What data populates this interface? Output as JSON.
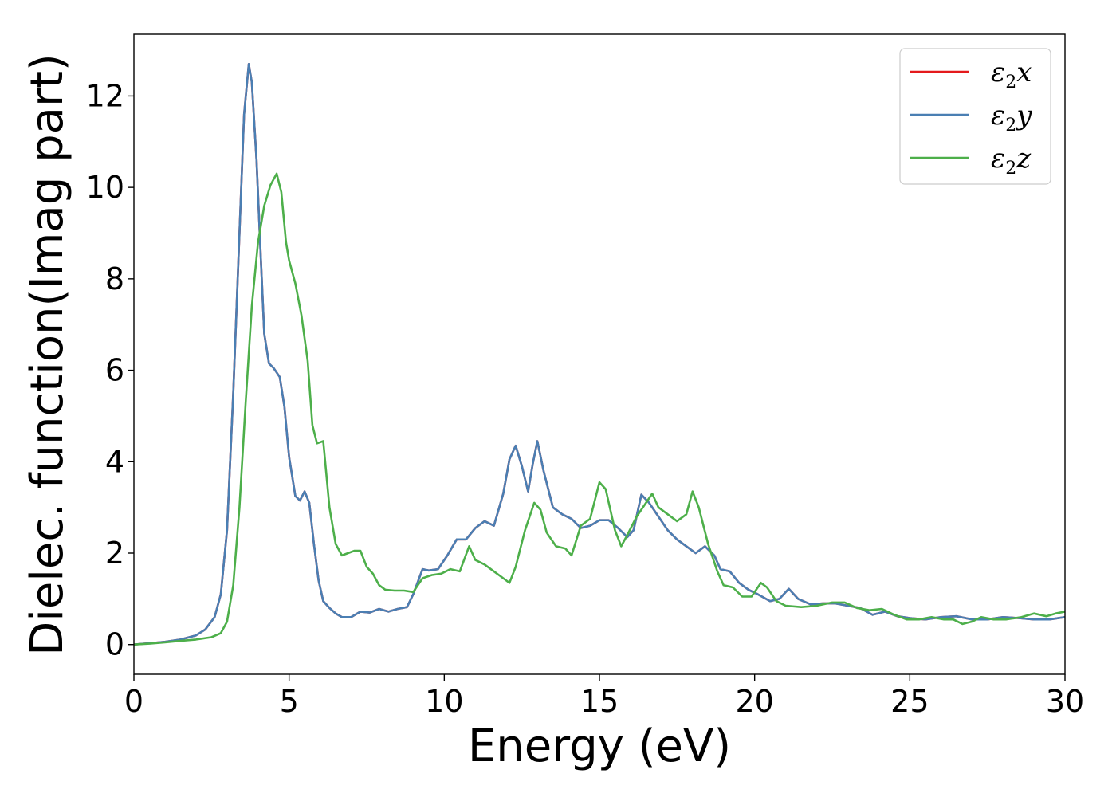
{
  "chart_data": {
    "type": "line",
    "xlabel": "Energy (eV)",
    "ylabel": "Dielec. function(Imag part)",
    "xlim": [
      0,
      30
    ],
    "ylim": [
      -0.65,
      13.35
    ],
    "xticks": [
      0,
      5,
      10,
      15,
      20,
      25,
      30
    ],
    "yticks": [
      0,
      2,
      4,
      6,
      8,
      10,
      12
    ],
    "grid": false,
    "legend_position": "top-right",
    "series": [
      {
        "name": "ε2x",
        "legend_base": "ε",
        "legend_sub": "2",
        "legend_tail": "x",
        "color": "#e41a1c",
        "points": [
          [
            0,
            0
          ],
          [
            0.5,
            0.03
          ],
          [
            1,
            0.06
          ],
          [
            1.5,
            0.11
          ],
          [
            2,
            0.2
          ],
          [
            2.3,
            0.33
          ],
          [
            2.6,
            0.6
          ],
          [
            2.8,
            1.1
          ],
          [
            3.0,
            2.5
          ],
          [
            3.2,
            5.5
          ],
          [
            3.4,
            9.0
          ],
          [
            3.55,
            11.6
          ],
          [
            3.7,
            12.7
          ],
          [
            3.8,
            12.3
          ],
          [
            3.95,
            10.6
          ],
          [
            4.1,
            8.3
          ],
          [
            4.2,
            6.8
          ],
          [
            4.35,
            6.15
          ],
          [
            4.5,
            6.05
          ],
          [
            4.7,
            5.85
          ],
          [
            4.85,
            5.2
          ],
          [
            5.0,
            4.1
          ],
          [
            5.2,
            3.25
          ],
          [
            5.35,
            3.15
          ],
          [
            5.5,
            3.35
          ],
          [
            5.65,
            3.1
          ],
          [
            5.8,
            2.2
          ],
          [
            5.95,
            1.4
          ],
          [
            6.1,
            0.95
          ],
          [
            6.3,
            0.8
          ],
          [
            6.5,
            0.68
          ],
          [
            6.7,
            0.6
          ],
          [
            7.0,
            0.6
          ],
          [
            7.3,
            0.72
          ],
          [
            7.6,
            0.7
          ],
          [
            7.9,
            0.78
          ],
          [
            8.2,
            0.72
          ],
          [
            8.5,
            0.78
          ],
          [
            8.8,
            0.82
          ],
          [
            9.0,
            1.1
          ],
          [
            9.3,
            1.65
          ],
          [
            9.5,
            1.62
          ],
          [
            9.8,
            1.65
          ],
          [
            10.1,
            1.95
          ],
          [
            10.4,
            2.3
          ],
          [
            10.7,
            2.3
          ],
          [
            11.0,
            2.55
          ],
          [
            11.3,
            2.7
          ],
          [
            11.6,
            2.6
          ],
          [
            11.9,
            3.3
          ],
          [
            12.1,
            4.05
          ],
          [
            12.3,
            4.35
          ],
          [
            12.5,
            3.9
          ],
          [
            12.7,
            3.35
          ],
          [
            12.85,
            3.95
          ],
          [
            13.0,
            4.45
          ],
          [
            13.2,
            3.8
          ],
          [
            13.5,
            3.0
          ],
          [
            13.8,
            2.85
          ],
          [
            14.1,
            2.75
          ],
          [
            14.4,
            2.55
          ],
          [
            14.7,
            2.6
          ],
          [
            15.0,
            2.72
          ],
          [
            15.3,
            2.72
          ],
          [
            15.6,
            2.55
          ],
          [
            15.9,
            2.35
          ],
          [
            16.1,
            2.5
          ],
          [
            16.35,
            3.28
          ],
          [
            16.6,
            3.1
          ],
          [
            16.9,
            2.8
          ],
          [
            17.2,
            2.5
          ],
          [
            17.5,
            2.3
          ],
          [
            17.8,
            2.15
          ],
          [
            18.1,
            2.0
          ],
          [
            18.4,
            2.15
          ],
          [
            18.7,
            1.95
          ],
          [
            18.9,
            1.65
          ],
          [
            19.2,
            1.6
          ],
          [
            19.5,
            1.35
          ],
          [
            19.8,
            1.2
          ],
          [
            20.1,
            1.1
          ],
          [
            20.5,
            0.95
          ],
          [
            20.8,
            1.0
          ],
          [
            21.1,
            1.22
          ],
          [
            21.4,
            1.0
          ],
          [
            21.8,
            0.88
          ],
          [
            22.2,
            0.9
          ],
          [
            22.6,
            0.9
          ],
          [
            23.0,
            0.85
          ],
          [
            23.4,
            0.8
          ],
          [
            23.8,
            0.65
          ],
          [
            24.2,
            0.72
          ],
          [
            24.6,
            0.62
          ],
          [
            25.0,
            0.58
          ],
          [
            25.5,
            0.55
          ],
          [
            26.0,
            0.6
          ],
          [
            26.5,
            0.62
          ],
          [
            27.0,
            0.55
          ],
          [
            27.5,
            0.55
          ],
          [
            28.0,
            0.6
          ],
          [
            28.5,
            0.58
          ],
          [
            29.0,
            0.55
          ],
          [
            29.5,
            0.55
          ],
          [
            30.0,
            0.6
          ]
        ]
      },
      {
        "name": "ε2y",
        "legend_base": "ε",
        "legend_sub": "2",
        "legend_tail": "y",
        "color": "#4a7fb3",
        "points": [
          [
            0,
            0
          ],
          [
            0.5,
            0.03
          ],
          [
            1,
            0.06
          ],
          [
            1.5,
            0.11
          ],
          [
            2,
            0.2
          ],
          [
            2.3,
            0.33
          ],
          [
            2.6,
            0.6
          ],
          [
            2.8,
            1.1
          ],
          [
            3.0,
            2.5
          ],
          [
            3.2,
            5.5
          ],
          [
            3.4,
            9.0
          ],
          [
            3.55,
            11.6
          ],
          [
            3.7,
            12.7
          ],
          [
            3.8,
            12.3
          ],
          [
            3.95,
            10.6
          ],
          [
            4.1,
            8.3
          ],
          [
            4.2,
            6.8
          ],
          [
            4.35,
            6.15
          ],
          [
            4.5,
            6.05
          ],
          [
            4.7,
            5.85
          ],
          [
            4.85,
            5.2
          ],
          [
            5.0,
            4.1
          ],
          [
            5.2,
            3.25
          ],
          [
            5.35,
            3.15
          ],
          [
            5.5,
            3.35
          ],
          [
            5.65,
            3.1
          ],
          [
            5.8,
            2.2
          ],
          [
            5.95,
            1.4
          ],
          [
            6.1,
            0.95
          ],
          [
            6.3,
            0.8
          ],
          [
            6.5,
            0.68
          ],
          [
            6.7,
            0.6
          ],
          [
            7.0,
            0.6
          ],
          [
            7.3,
            0.72
          ],
          [
            7.6,
            0.7
          ],
          [
            7.9,
            0.78
          ],
          [
            8.2,
            0.72
          ],
          [
            8.5,
            0.78
          ],
          [
            8.8,
            0.82
          ],
          [
            9.0,
            1.1
          ],
          [
            9.3,
            1.65
          ],
          [
            9.5,
            1.62
          ],
          [
            9.8,
            1.65
          ],
          [
            10.1,
            1.95
          ],
          [
            10.4,
            2.3
          ],
          [
            10.7,
            2.3
          ],
          [
            11.0,
            2.55
          ],
          [
            11.3,
            2.7
          ],
          [
            11.6,
            2.6
          ],
          [
            11.9,
            3.3
          ],
          [
            12.1,
            4.05
          ],
          [
            12.3,
            4.35
          ],
          [
            12.5,
            3.9
          ],
          [
            12.7,
            3.35
          ],
          [
            12.85,
            3.95
          ],
          [
            13.0,
            4.45
          ],
          [
            13.2,
            3.8
          ],
          [
            13.5,
            3.0
          ],
          [
            13.8,
            2.85
          ],
          [
            14.1,
            2.75
          ],
          [
            14.4,
            2.55
          ],
          [
            14.7,
            2.6
          ],
          [
            15.0,
            2.72
          ],
          [
            15.3,
            2.72
          ],
          [
            15.6,
            2.55
          ],
          [
            15.9,
            2.35
          ],
          [
            16.1,
            2.5
          ],
          [
            16.35,
            3.28
          ],
          [
            16.6,
            3.1
          ],
          [
            16.9,
            2.8
          ],
          [
            17.2,
            2.5
          ],
          [
            17.5,
            2.3
          ],
          [
            17.8,
            2.15
          ],
          [
            18.1,
            2.0
          ],
          [
            18.4,
            2.15
          ],
          [
            18.7,
            1.95
          ],
          [
            18.9,
            1.65
          ],
          [
            19.2,
            1.6
          ],
          [
            19.5,
            1.35
          ],
          [
            19.8,
            1.2
          ],
          [
            20.1,
            1.1
          ],
          [
            20.5,
            0.95
          ],
          [
            20.8,
            1.0
          ],
          [
            21.1,
            1.22
          ],
          [
            21.4,
            1.0
          ],
          [
            21.8,
            0.88
          ],
          [
            22.2,
            0.9
          ],
          [
            22.6,
            0.9
          ],
          [
            23.0,
            0.85
          ],
          [
            23.4,
            0.8
          ],
          [
            23.8,
            0.65
          ],
          [
            24.2,
            0.72
          ],
          [
            24.6,
            0.62
          ],
          [
            25.0,
            0.58
          ],
          [
            25.5,
            0.55
          ],
          [
            26.0,
            0.6
          ],
          [
            26.5,
            0.62
          ],
          [
            27.0,
            0.55
          ],
          [
            27.5,
            0.55
          ],
          [
            28.0,
            0.6
          ],
          [
            28.5,
            0.58
          ],
          [
            29.0,
            0.55
          ],
          [
            29.5,
            0.55
          ],
          [
            30.0,
            0.6
          ]
        ]
      },
      {
        "name": "ε2z",
        "legend_base": "ε",
        "legend_sub": "2",
        "legend_tail": "z",
        "color": "#4daf4a",
        "points": [
          [
            0,
            0
          ],
          [
            0.5,
            0.02
          ],
          [
            1,
            0.05
          ],
          [
            1.5,
            0.08
          ],
          [
            2,
            0.11
          ],
          [
            2.5,
            0.16
          ],
          [
            2.8,
            0.25
          ],
          [
            3.0,
            0.5
          ],
          [
            3.2,
            1.3
          ],
          [
            3.4,
            3.0
          ],
          [
            3.6,
            5.3
          ],
          [
            3.8,
            7.4
          ],
          [
            4.0,
            8.8
          ],
          [
            4.2,
            9.6
          ],
          [
            4.4,
            10.05
          ],
          [
            4.6,
            10.3
          ],
          [
            4.75,
            9.9
          ],
          [
            4.9,
            8.8
          ],
          [
            5.0,
            8.4
          ],
          [
            5.2,
            7.9
          ],
          [
            5.4,
            7.2
          ],
          [
            5.6,
            6.2
          ],
          [
            5.75,
            4.8
          ],
          [
            5.9,
            4.4
          ],
          [
            6.1,
            4.45
          ],
          [
            6.3,
            3.0
          ],
          [
            6.5,
            2.2
          ],
          [
            6.7,
            1.95
          ],
          [
            6.9,
            2.0
          ],
          [
            7.1,
            2.05
          ],
          [
            7.3,
            2.05
          ],
          [
            7.5,
            1.7
          ],
          [
            7.7,
            1.55
          ],
          [
            7.9,
            1.3
          ],
          [
            8.1,
            1.2
          ],
          [
            8.4,
            1.18
          ],
          [
            8.7,
            1.18
          ],
          [
            9.0,
            1.15
          ],
          [
            9.3,
            1.45
          ],
          [
            9.6,
            1.52
          ],
          [
            9.9,
            1.55
          ],
          [
            10.2,
            1.65
          ],
          [
            10.5,
            1.6
          ],
          [
            10.8,
            2.15
          ],
          [
            11.0,
            1.85
          ],
          [
            11.3,
            1.75
          ],
          [
            11.6,
            1.6
          ],
          [
            11.9,
            1.45
          ],
          [
            12.1,
            1.35
          ],
          [
            12.3,
            1.7
          ],
          [
            12.6,
            2.5
          ],
          [
            12.9,
            3.1
          ],
          [
            13.1,
            2.95
          ],
          [
            13.3,
            2.45
          ],
          [
            13.6,
            2.15
          ],
          [
            13.9,
            2.1
          ],
          [
            14.1,
            1.95
          ],
          [
            14.4,
            2.6
          ],
          [
            14.7,
            2.75
          ],
          [
            15.0,
            3.55
          ],
          [
            15.2,
            3.4
          ],
          [
            15.5,
            2.5
          ],
          [
            15.7,
            2.15
          ],
          [
            15.9,
            2.4
          ],
          [
            16.2,
            2.8
          ],
          [
            16.5,
            3.1
          ],
          [
            16.7,
            3.3
          ],
          [
            16.9,
            3.0
          ],
          [
            17.2,
            2.85
          ],
          [
            17.5,
            2.7
          ],
          [
            17.8,
            2.85
          ],
          [
            18.0,
            3.35
          ],
          [
            18.2,
            3.0
          ],
          [
            18.5,
            2.2
          ],
          [
            18.8,
            1.6
          ],
          [
            19.0,
            1.3
          ],
          [
            19.3,
            1.25
          ],
          [
            19.6,
            1.05
          ],
          [
            19.9,
            1.05
          ],
          [
            20.2,
            1.35
          ],
          [
            20.4,
            1.25
          ],
          [
            20.7,
            0.95
          ],
          [
            21.0,
            0.85
          ],
          [
            21.5,
            0.82
          ],
          [
            22.0,
            0.85
          ],
          [
            22.5,
            0.92
          ],
          [
            22.9,
            0.92
          ],
          [
            23.3,
            0.8
          ],
          [
            23.7,
            0.75
          ],
          [
            24.1,
            0.78
          ],
          [
            24.5,
            0.65
          ],
          [
            24.9,
            0.55
          ],
          [
            25.3,
            0.55
          ],
          [
            25.7,
            0.6
          ],
          [
            26.1,
            0.55
          ],
          [
            26.4,
            0.55
          ],
          [
            26.7,
            0.45
          ],
          [
            27.0,
            0.5
          ],
          [
            27.3,
            0.6
          ],
          [
            27.7,
            0.55
          ],
          [
            28.1,
            0.55
          ],
          [
            28.6,
            0.6
          ],
          [
            29.0,
            0.68
          ],
          [
            29.4,
            0.62
          ],
          [
            29.7,
            0.68
          ],
          [
            30.0,
            0.72
          ]
        ]
      }
    ]
  }
}
